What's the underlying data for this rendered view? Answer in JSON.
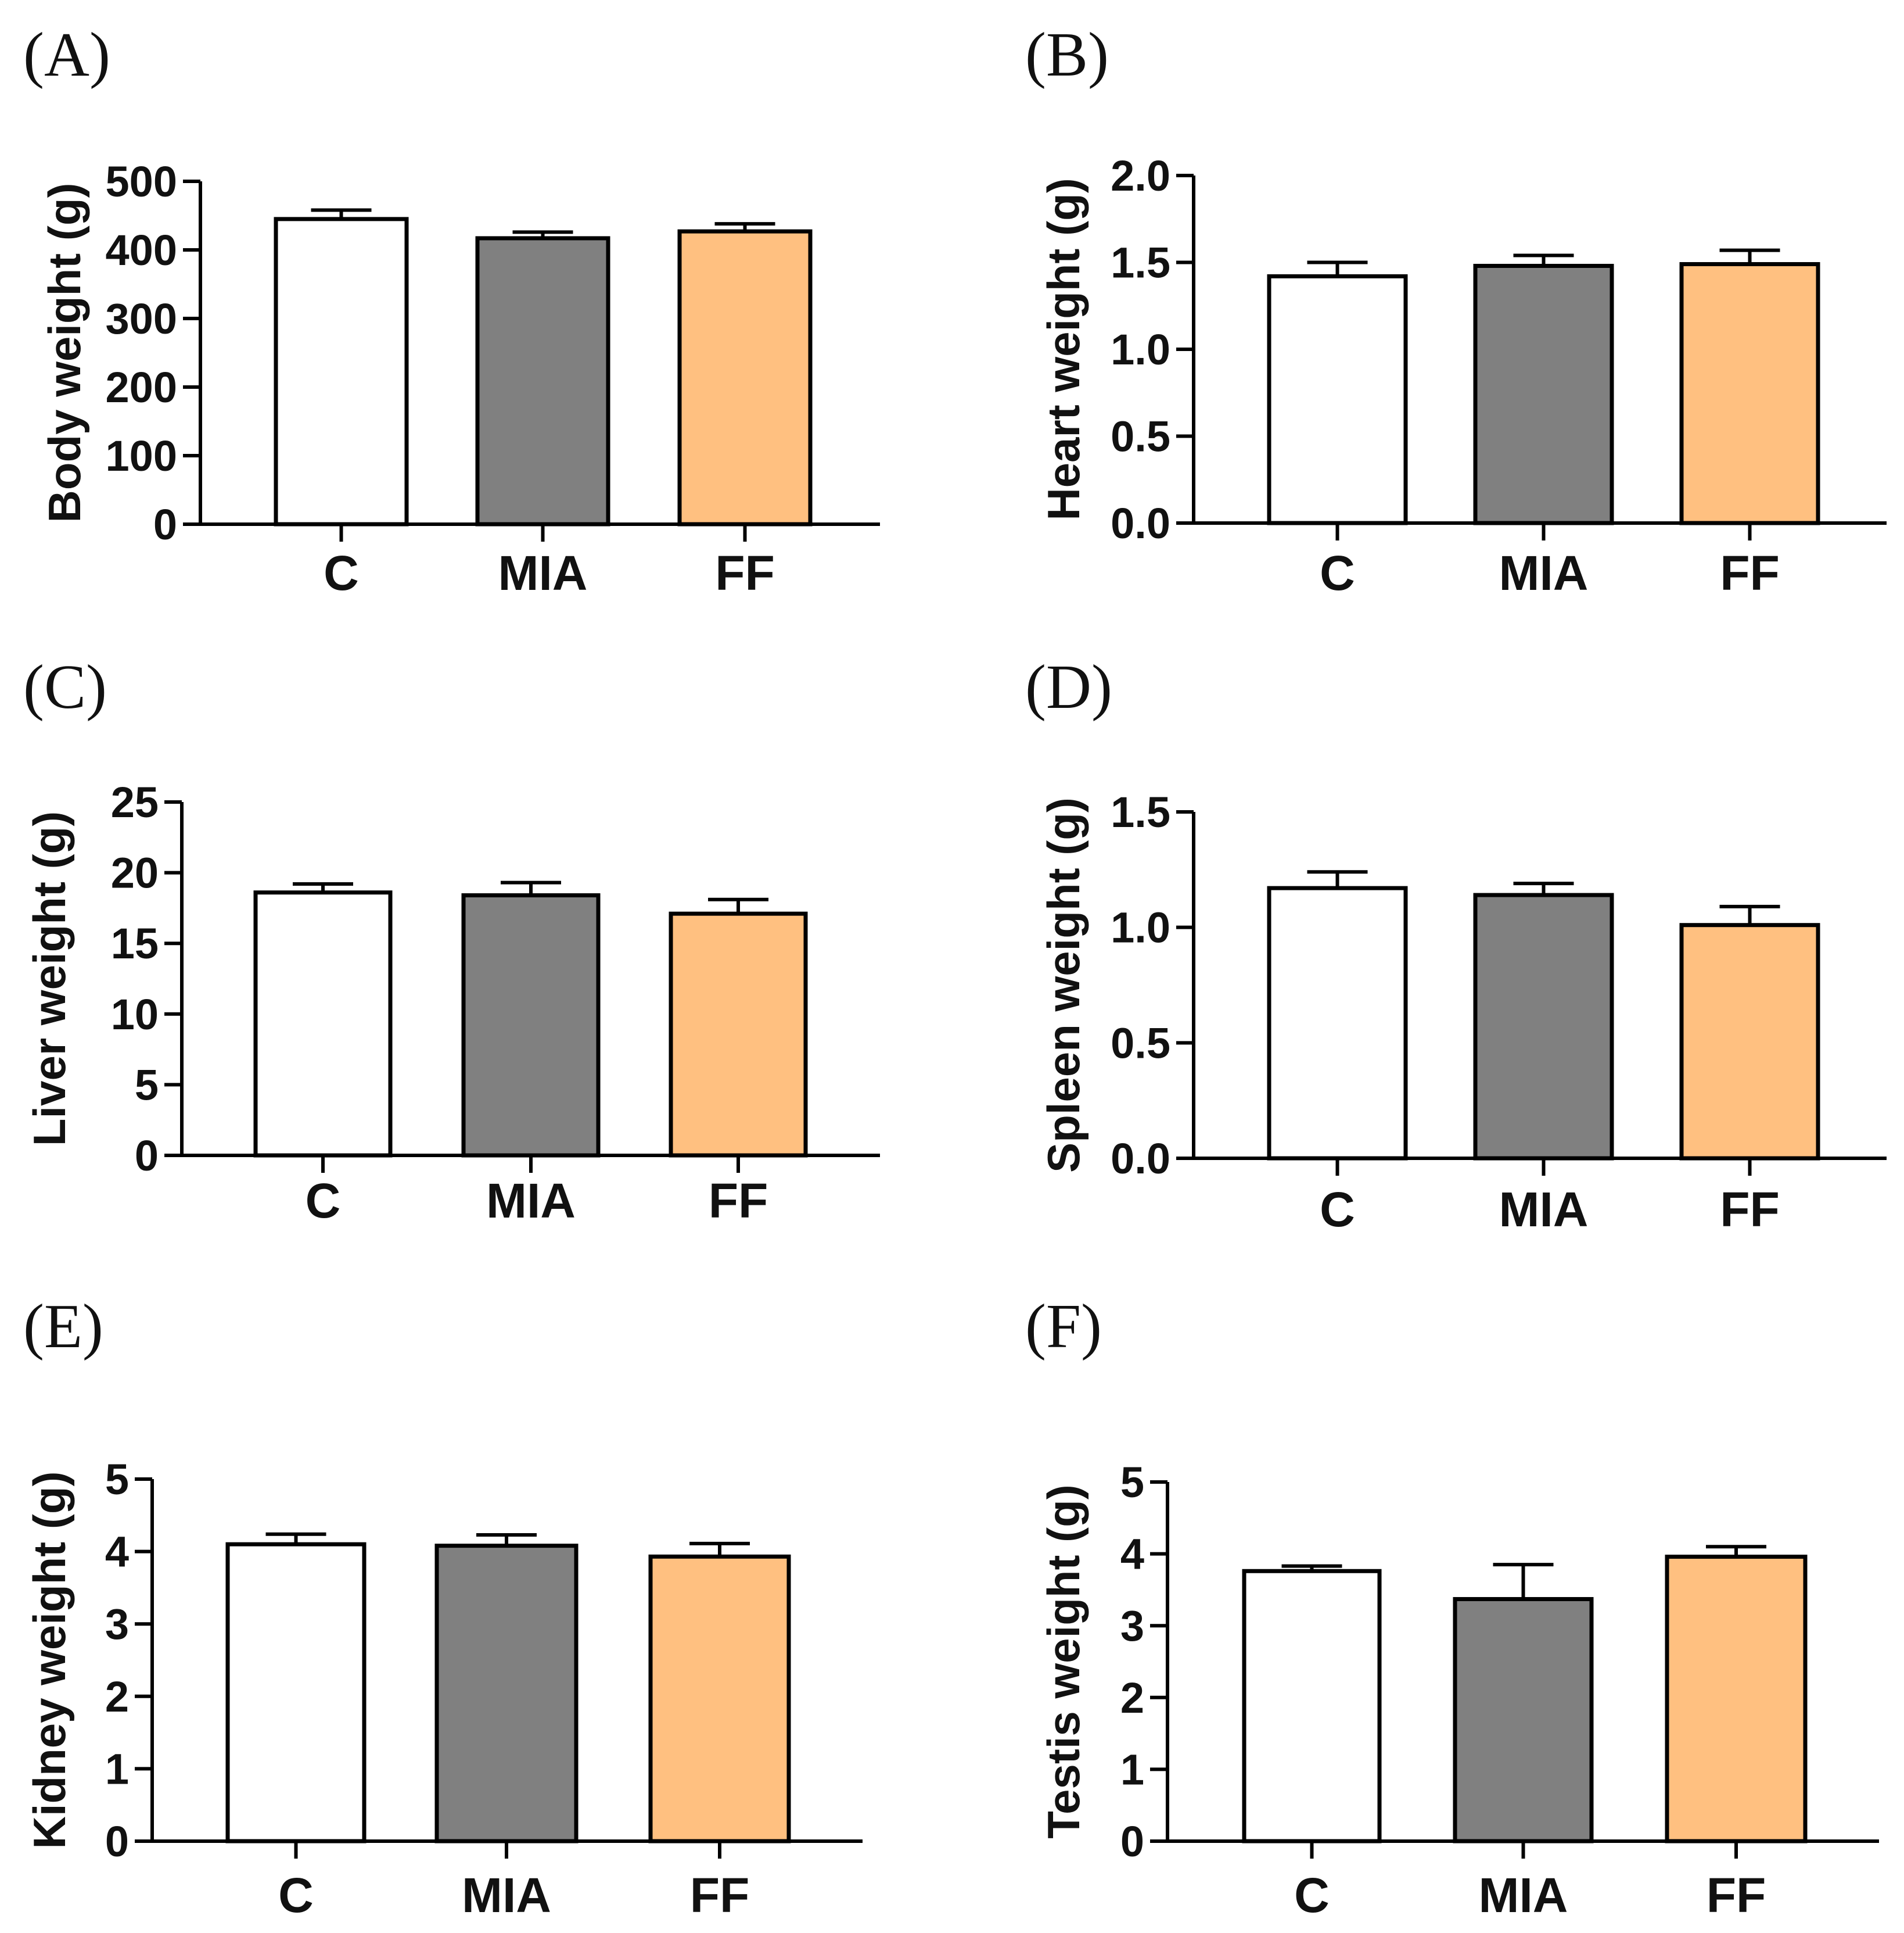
{
  "chart_data": [
    {
      "id": "A",
      "panel_label": "(A)",
      "type": "bar",
      "ylabel": "Body weight (g)",
      "categories": [
        "C",
        "MIA",
        "FF"
      ],
      "values": [
        445,
        417,
        427
      ],
      "errors": [
        13,
        9,
        11
      ],
      "ylim": [
        0,
        500
      ],
      "yticks": [
        0,
        100,
        200,
        300,
        400,
        500
      ],
      "ytick_labels": [
        "0",
        "100",
        "200",
        "300",
        "400",
        "500"
      ],
      "colors": [
        "#ffffff",
        "#808080",
        "#ffc080"
      ]
    },
    {
      "id": "B",
      "panel_label": "(B)",
      "type": "bar",
      "ylabel": "Heart weight (g)",
      "categories": [
        "C",
        "MIA",
        "FF"
      ],
      "values": [
        1.42,
        1.48,
        1.49
      ],
      "errors": [
        0.08,
        0.06,
        0.08
      ],
      "ylim": [
        0,
        2.0
      ],
      "yticks": [
        0,
        0.5,
        1.0,
        1.5,
        2.0
      ],
      "ytick_labels": [
        "0.0",
        "0.5",
        "1.0",
        "1.5",
        "2.0"
      ],
      "colors": [
        "#ffffff",
        "#808080",
        "#ffc080"
      ]
    },
    {
      "id": "C",
      "panel_label": "(C)",
      "type": "bar",
      "ylabel": "Liver weight (g)",
      "categories": [
        "C",
        "MIA",
        "FF"
      ],
      "values": [
        18.6,
        18.4,
        17.1
      ],
      "errors": [
        0.6,
        0.9,
        1.0
      ],
      "ylim": [
        0,
        25
      ],
      "yticks": [
        0,
        5,
        10,
        15,
        20,
        25
      ],
      "ytick_labels": [
        "0",
        "5",
        "10",
        "15",
        "20",
        "25"
      ],
      "colors": [
        "#ffffff",
        "#808080",
        "#ffc080"
      ]
    },
    {
      "id": "D",
      "panel_label": "(D)",
      "type": "bar",
      "ylabel": "Spleen weight (g)",
      "categories": [
        "C",
        "MIA",
        "FF"
      ],
      "values": [
        1.17,
        1.14,
        1.01
      ],
      "errors": [
        0.07,
        0.05,
        0.08
      ],
      "ylim": [
        0,
        1.5
      ],
      "yticks": [
        0,
        0.5,
        1.0,
        1.5
      ],
      "ytick_labels": [
        "0.0",
        "0.5",
        "1.0",
        "1.5"
      ],
      "colors": [
        "#ffffff",
        "#808080",
        "#ffc080"
      ]
    },
    {
      "id": "E",
      "panel_label": "(E)",
      "type": "bar",
      "ylabel": "Kidney weight (g)",
      "categories": [
        "C",
        "MIA",
        "FF"
      ],
      "values": [
        4.1,
        4.08,
        3.93
      ],
      "errors": [
        0.14,
        0.15,
        0.18
      ],
      "ylim": [
        0,
        5
      ],
      "yticks": [
        0,
        1,
        2,
        3,
        4,
        5
      ],
      "ytick_labels": [
        "0",
        "1",
        "2",
        "3",
        "4",
        "5"
      ],
      "colors": [
        "#ffffff",
        "#808080",
        "#ffc080"
      ]
    },
    {
      "id": "F",
      "panel_label": "(F)",
      "type": "bar",
      "ylabel": "Testis weight (g)",
      "categories": [
        "C",
        "MIA",
        "FF"
      ],
      "values": [
        3.76,
        3.37,
        3.96
      ],
      "errors": [
        0.07,
        0.48,
        0.14
      ],
      "ylim": [
        0,
        5
      ],
      "yticks": [
        0,
        1,
        2,
        3,
        4,
        5
      ],
      "ytick_labels": [
        "0",
        "1",
        "2",
        "3",
        "4",
        "5"
      ],
      "colors": [
        "#ffffff",
        "#808080",
        "#ffc080"
      ]
    }
  ]
}
